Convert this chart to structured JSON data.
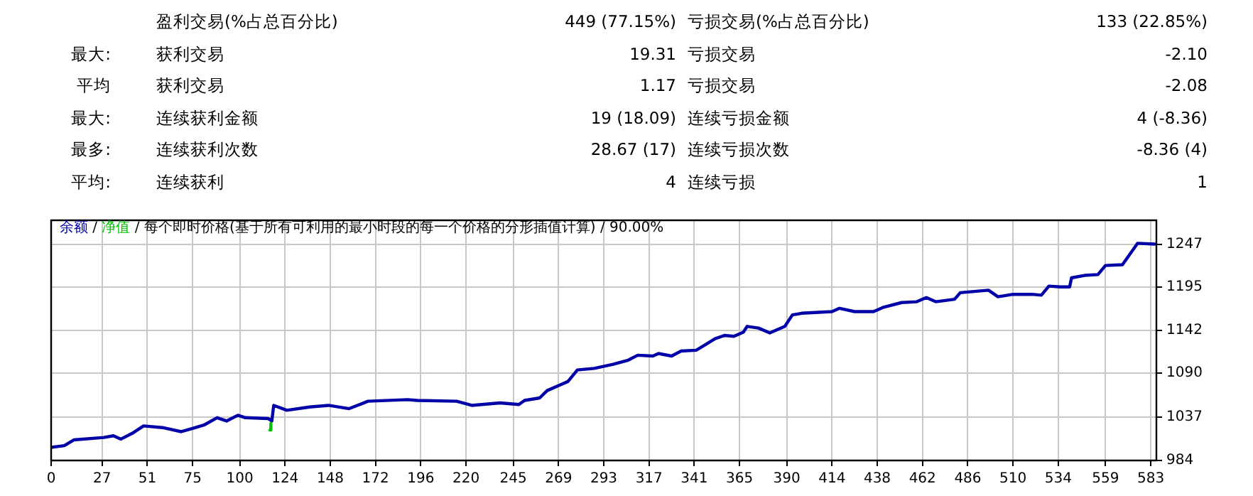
{
  "chart_data": [
    {
      "type": "other",
      "annotations": [
        "盈利交易(%占总百分比)",
        "449 (77.15%)",
        "亏损交易(%占总百分比)",
        "133 (22.85%)",
        "最大:",
        "获利交易",
        "19.31",
        "亏损交易",
        "-2.10",
        "平均",
        "获利交易",
        "1.17",
        "亏损交易",
        "-2.08",
        "最大:",
        "连续获利金额",
        "19 (18.09)",
        "连续亏损金额",
        "4 (-8.36)",
        "最多:",
        "连续获利次数",
        "28.67 (17)",
        "连续亏损次数",
        "-8.36 (4)",
        "平均:",
        "连续获利",
        "4",
        "连续亏损",
        "1"
      ]
    },
    {
      "type": "line",
      "title": "每个即时价格(基于所有可利用的最小时段的每一个价格的分形插值计算) / 90.00%",
      "xlim": [
        0,
        586
      ],
      "xticks": [
        0,
        27,
        51,
        75,
        100,
        124,
        148,
        172,
        196,
        220,
        245,
        269,
        293,
        317,
        341,
        365,
        390,
        414,
        438,
        462,
        486,
        510,
        534,
        559,
        583
      ],
      "ylim": [
        984,
        1276
      ],
      "annotations": [
        "/",
        "/"
      ],
      "yticks": [
        984,
        1037,
        1090,
        1142,
        1195,
        1247
      ],
      "grid": true,
      "legend": "top left",
      "marker": "none",
      "line_style": "solid",
      "series": [
        {
          "name": "净值",
          "color": "#00c000",
          "x": [
            116,
            116.5
          ],
          "values": [
            1021,
            1029
          ]
        },
        {
          "name": "余额",
          "color": "#0000a8",
          "x": [
            0,
            7,
            12,
            28,
            33,
            37,
            43,
            49,
            59,
            69,
            75,
            81,
            88,
            93,
            99,
            103,
            115,
            117,
            118,
            125,
            137,
            147,
            158,
            168,
            189,
            194,
            215,
            223,
            238,
            248,
            251,
            259,
            263,
            270,
            274,
            279,
            288,
            298,
            306,
            311,
            319,
            322,
            329,
            334,
            342,
            347,
            352,
            357,
            362,
            367,
            369,
            375,
            381,
            389,
            393,
            398,
            414,
            418,
            426,
            436,
            441,
            451,
            459,
            464,
            469,
            479,
            482,
            497,
            502,
            510,
            520,
            525,
            529,
            535,
            540,
            541,
            548,
            555,
            559,
            568,
            572,
            576,
            585
          ],
          "values": [
            1000,
            1002,
            1009,
            1012,
            1014,
            1010,
            1017,
            1026,
            1024,
            1019,
            1023,
            1027,
            1036,
            1032,
            1039,
            1036,
            1035,
            1032,
            1051,
            1045,
            1049,
            1051,
            1047,
            1056,
            1058,
            1057,
            1056,
            1051,
            1054,
            1052,
            1057,
            1060,
            1069,
            1076,
            1080,
            1094,
            1096,
            1101,
            1106,
            1112,
            1111,
            1114,
            1111,
            1117,
            1118,
            1125,
            1132,
            1136,
            1135,
            1140,
            1147,
            1145,
            1139,
            1147,
            1161,
            1163,
            1165,
            1169,
            1165,
            1165,
            1170,
            1176,
            1177,
            1182,
            1177,
            1180,
            1188,
            1191,
            1183,
            1186,
            1186,
            1185,
            1196,
            1195,
            1195,
            1206,
            1209,
            1210,
            1221,
            1222,
            1235,
            1248,
            1247
          ]
        }
      ]
    }
  ]
}
